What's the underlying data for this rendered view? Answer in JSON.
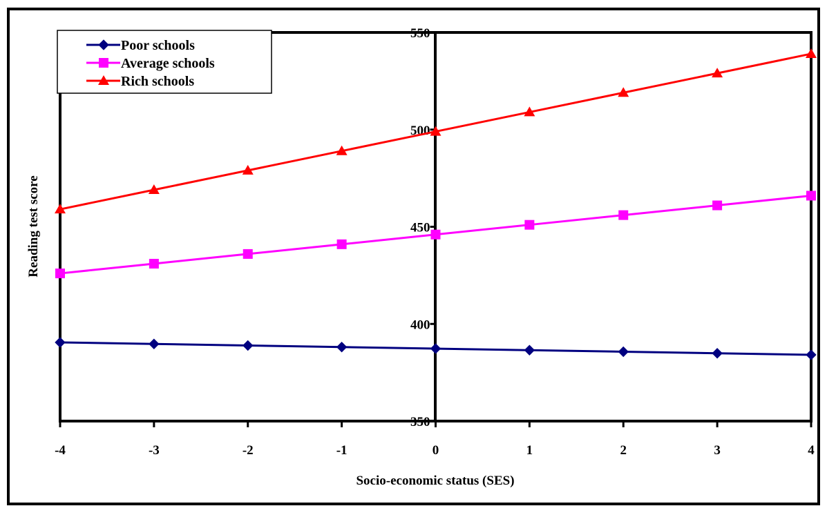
{
  "chart_data": {
    "type": "line",
    "title": "",
    "xlabel": "Socio-economic status (SES)",
    "ylabel": "Reading test score",
    "x": [
      -4,
      -3,
      -2,
      -1,
      0,
      1,
      2,
      3,
      4
    ],
    "xlim": [
      -4,
      4
    ],
    "ylim": [
      350,
      550
    ],
    "yticks": [
      350,
      400,
      450,
      500,
      550
    ],
    "grid": false,
    "legend_position": "top-left",
    "series": [
      {
        "name": "Poor schools",
        "color": "#000080",
        "marker": "diamond",
        "values": [
          390.5,
          389.7,
          388.9,
          388.1,
          387.3,
          386.5,
          385.7,
          384.9,
          384.1
        ]
      },
      {
        "name": "Average schools",
        "color": "#ff00ff",
        "marker": "square",
        "values": [
          426,
          431,
          436,
          441,
          446,
          451,
          456,
          461,
          466
        ]
      },
      {
        "name": "Rich schools",
        "color": "#ff0000",
        "marker": "triangle",
        "values": [
          459,
          469,
          479,
          489,
          499,
          509,
          519,
          529,
          539
        ]
      }
    ]
  }
}
